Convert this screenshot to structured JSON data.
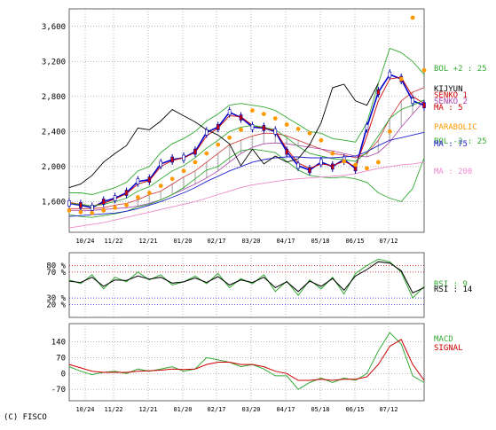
{
  "copyright": "(C) FISCO",
  "chart_data": [
    {
      "type": "line",
      "panel": "price",
      "x_labels": [
        "10/24",
        "11/22",
        "12/21",
        "01/20",
        "02/17",
        "03/20",
        "04/17",
        "05/18",
        "06/15",
        "07/12"
      ],
      "ylim": [
        1250,
        3800
      ],
      "y_ticks": [
        1600,
        2000,
        2400,
        2800,
        3200,
        3600
      ],
      "y_tick_labels": [
        "1,600",
        "2,000",
        "2,400",
        "2,800",
        "3,200",
        "3,600"
      ],
      "series": [
        {
          "name": "Close",
          "color": "#0000cc",
          "values": [
            1580,
            1560,
            1530,
            1600,
            1640,
            1700,
            1830,
            1850,
            2030,
            2080,
            2100,
            2170,
            2390,
            2450,
            2620,
            2560,
            2450,
            2440,
            2400,
            2170,
            2010,
            1960,
            2050,
            2000,
            2080,
            1980,
            2450,
            2850,
            3050,
            3000,
            2750,
            2700
          ]
        },
        {
          "name": "BOL +2 : 25",
          "color": "#33aa33",
          "values": [
            1700,
            1700,
            1680,
            1720,
            1760,
            1820,
            1950,
            2000,
            2160,
            2260,
            2320,
            2400,
            2520,
            2600,
            2700,
            2720,
            2700,
            2680,
            2640,
            2560,
            2480,
            2400,
            2380,
            2320,
            2300,
            2280,
            2500,
            2950,
            3350,
            3300,
            3200,
            3050
          ]
        },
        {
          "name": "BOL -2 : 25",
          "color": "#33aa33",
          "values": [
            1450,
            1430,
            1420,
            1440,
            1460,
            1490,
            1540,
            1570,
            1620,
            1680,
            1760,
            1860,
            1960,
            2000,
            2100,
            2180,
            2200,
            2180,
            2160,
            2060,
            1960,
            1900,
            1880,
            1870,
            1880,
            1860,
            1820,
            1700,
            1640,
            1600,
            1750,
            2100
          ]
        },
        {
          "name": "MA : 5",
          "color": "#cc0000",
          "values": [
            1590,
            1570,
            1550,
            1580,
            1630,
            1690,
            1800,
            1840,
            2000,
            2070,
            2100,
            2160,
            2350,
            2440,
            2580,
            2570,
            2470,
            2440,
            2410,
            2200,
            2040,
            1980,
            2030,
            2010,
            2060,
            2000,
            2350,
            2750,
            3000,
            3020,
            2800,
            2720
          ]
        },
        {
          "name": "MA : 25",
          "color": "#33aa33",
          "values": [
            1580,
            1570,
            1550,
            1570,
            1600,
            1640,
            1720,
            1770,
            1860,
            1950,
            2010,
            2100,
            2210,
            2300,
            2400,
            2450,
            2470,
            2450,
            2420,
            2330,
            2230,
            2150,
            2120,
            2090,
            2080,
            2060,
            2160,
            2350,
            2550,
            2650,
            2700,
            2760
          ]
        },
        {
          "name": "MA : 75",
          "color": "#2222cc",
          "values": [
            1430,
            1440,
            1450,
            1460,
            1470,
            1490,
            1520,
            1560,
            1600,
            1650,
            1700,
            1760,
            1830,
            1890,
            1950,
            2000,
            2050,
            2080,
            2100,
            2110,
            2110,
            2100,
            2100,
            2100,
            2110,
            2120,
            2170,
            2240,
            2300,
            2330,
            2360,
            2390
          ]
        },
        {
          "name": "MA : 200",
          "color": "#ee88cc",
          "values": [
            1300,
            1320,
            1340,
            1360,
            1390,
            1420,
            1450,
            1480,
            1510,
            1540,
            1570,
            1600,
            1640,
            1680,
            1720,
            1760,
            1790,
            1810,
            1830,
            1850,
            1860,
            1870,
            1880,
            1890,
            1900,
            1920,
            1950,
            1980,
            2000,
            2020,
            2030,
            2050
          ]
        },
        {
          "name": "Lagging",
          "color": "#000000",
          "values": [
            1760,
            1800,
            1900,
            2050,
            2150,
            2240,
            2440,
            2420,
            2520,
            2650,
            2580,
            2510,
            2420,
            2360,
            2260,
            2010,
            2200,
            2030,
            2120,
            2050,
            2090,
            2250,
            2500,
            2900,
            2940,
            2750,
            2700,
            2950,
            null,
            null,
            null,
            null
          ]
        }
      ],
      "parabolic": {
        "name": "PARABOLIC",
        "color": "#ff9900",
        "values": [
          1500,
          1480,
          1470,
          1500,
          1530,
          1560,
          1650,
          1700,
          1780,
          1860,
          1950,
          2050,
          2150,
          2250,
          2330,
          2420,
          2640,
          2600,
          2550,
          2480,
          2430,
          2380,
          2300,
          2150,
          2060,
          2020,
          1980,
          2050,
          2400,
          3000,
          3700,
          3100
        ]
      },
      "cloud": {
        "name": "Ichimoku",
        "lead_a": [
          1520,
          1520,
          1520,
          1530,
          1560,
          1580,
          1620,
          1680,
          1720,
          1800,
          1880,
          1950,
          2050,
          2150,
          2250,
          2300,
          2350,
          2380,
          2380,
          2350,
          2300,
          2250,
          2200,
          2150,
          2130,
          2100,
          2150,
          2300,
          2550,
          2750,
          2850,
          2900
        ],
        "lead_b": [
          1500,
          1500,
          1500,
          1510,
          1520,
          1530,
          1550,
          1580,
          1620,
          1680,
          1740,
          1800,
          1870,
          1950,
          2050,
          2150,
          2220,
          2260,
          2270,
          2260,
          2240,
          2220,
          2200,
          2180,
          2150,
          2120,
          2110,
          2160,
          2280,
          2450,
          2600,
          2750
        ],
        "color": "#cc3333"
      },
      "legend_labels": [
        "BOL +2 : 25",
        "KIJYUN",
        "SENKO 1",
        "SENKO 2",
        "MA : 5",
        "PARABOLIC",
        "BOL -2 : 25",
        "MA : 75",
        "MA : 200"
      ]
    },
    {
      "type": "line",
      "panel": "rsi",
      "ylim": [
        0,
        100
      ],
      "y_tick_labels": [
        "80 %",
        "70 %",
        "30 %",
        "20 %"
      ],
      "series": [
        {
          "name": "RSI : 9",
          "color": "#33aa33",
          "values": [
            58,
            52,
            66,
            44,
            62,
            55,
            70,
            58,
            66,
            50,
            55,
            64,
            52,
            68,
            46,
            60,
            52,
            66,
            40,
            56,
            34,
            58,
            44,
            62,
            36,
            68,
            80,
            90,
            86,
            70,
            30,
            48
          ]
        },
        {
          "name": "RSI : 14",
          "color": "#000000",
          "values": [
            56,
            54,
            62,
            48,
            58,
            57,
            64,
            59,
            62,
            53,
            55,
            61,
            54,
            63,
            50,
            58,
            54,
            62,
            46,
            55,
            40,
            56,
            48,
            60,
            42,
            64,
            74,
            86,
            84,
            72,
            38,
            46
          ]
        }
      ],
      "legend_labels": [
        "RSI : 9",
        "RSI : 14"
      ]
    },
    {
      "type": "line",
      "panel": "macd",
      "ylim": [
        -120,
        220
      ],
      "y_ticks": [
        -70,
        0,
        70,
        140
      ],
      "y_tick_labels": [
        "-70",
        "0",
        "70",
        "140"
      ],
      "series": [
        {
          "name": "MACD",
          "color": "#33aa33",
          "values": [
            30,
            10,
            -5,
            5,
            10,
            0,
            20,
            10,
            20,
            30,
            10,
            20,
            70,
            60,
            50,
            30,
            40,
            20,
            -10,
            -10,
            -70,
            -40,
            -20,
            -40,
            -20,
            -30,
            0,
            100,
            180,
            130,
            -10,
            -40
          ]
        },
        {
          "name": "SIGNAL",
          "color": "#cc0000",
          "values": [
            40,
            25,
            10,
            5,
            5,
            5,
            10,
            12,
            15,
            20,
            18,
            20,
            40,
            50,
            50,
            40,
            40,
            30,
            10,
            0,
            -30,
            -30,
            -25,
            -30,
            -25,
            -25,
            -15,
            40,
            120,
            150,
            40,
            -30
          ]
        }
      ],
      "legend_labels": [
        "MACD",
        "SIGNAL"
      ]
    }
  ]
}
